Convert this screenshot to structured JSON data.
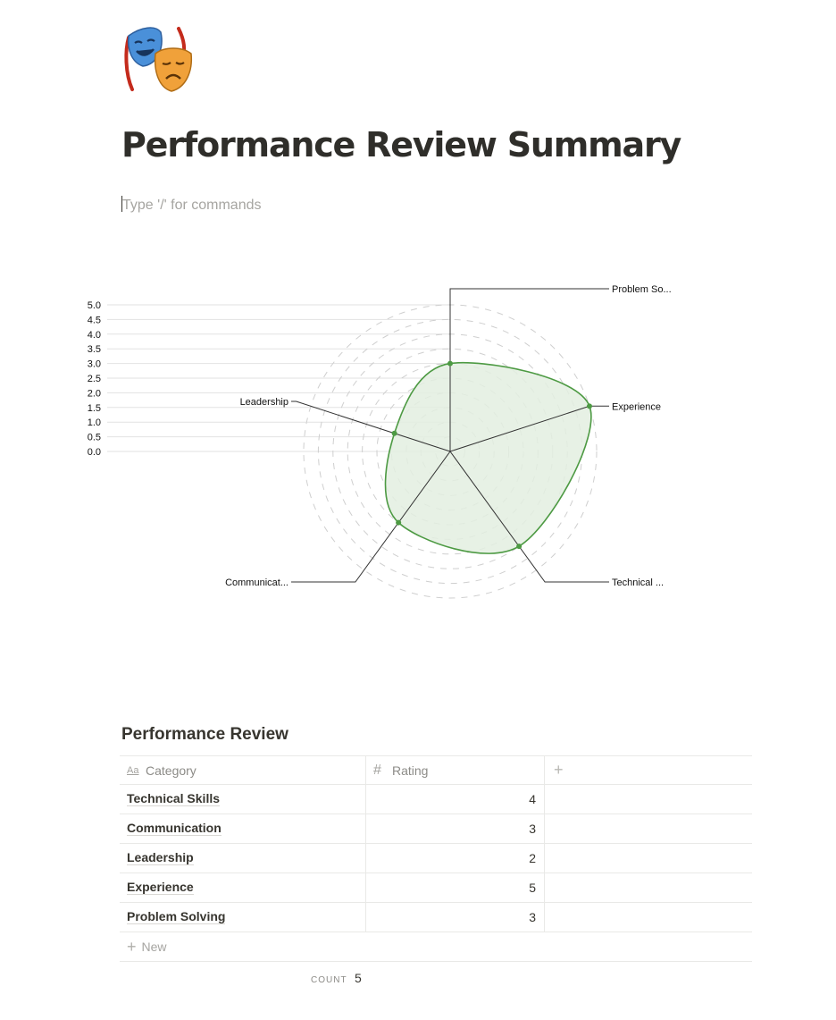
{
  "page": {
    "icon": "theater-masks-icon",
    "title": "Performance Review Summary",
    "placeholder": "Type '/' for commands"
  },
  "chart_data": {
    "type": "radar",
    "categories": [
      "Problem So...",
      "Experience",
      "Technical ...",
      "Communicat...",
      "Leadership"
    ],
    "values": [
      3,
      5,
      4,
      3,
      2
    ],
    "rlim": [
      0,
      5
    ],
    "ticks": [
      "5.0",
      "4.5",
      "4.0",
      "3.5",
      "3.0",
      "2.5",
      "2.0",
      "1.5",
      "1.0",
      "0.5",
      "0.0"
    ],
    "color": "#4d9a43",
    "fill": "#e3efe0"
  },
  "database": {
    "title": "Performance Review",
    "columns": [
      {
        "icon": "text-property-icon",
        "label": "Category"
      },
      {
        "icon": "number-property-icon",
        "label": "Rating"
      }
    ],
    "add_column_label": "+",
    "rows": [
      {
        "category": "Technical Skills",
        "rating": "4"
      },
      {
        "category": "Communication",
        "rating": "3"
      },
      {
        "category": "Leadership",
        "rating": "2"
      },
      {
        "category": "Experience",
        "rating": "5"
      },
      {
        "category": "Problem Solving",
        "rating": "3"
      }
    ],
    "new_label": "New",
    "count_label": "COUNT",
    "count_value": "5"
  }
}
